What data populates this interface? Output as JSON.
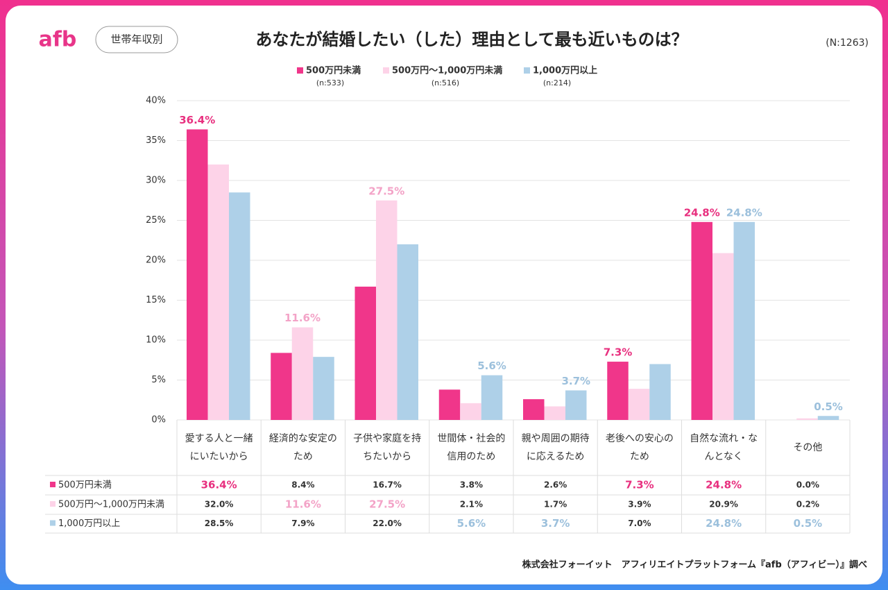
{
  "brand": "afb",
  "badge": "世帯年収別",
  "sample_total": "(N:1263)",
  "source": "株式会社フォーイット　アフィリエイトプラットフォーム『afb（アフィビー）』調べ",
  "chart_data": {
    "type": "bar",
    "title": "あなたが結婚したい（した）理由として最も近いものは？",
    "categories": [
      "愛する人と一緒にいたいから",
      "経済的な安定のため",
      "子供や家庭を持ちたいから",
      "世間体・社会的信用のため",
      "親や周囲の期待に応えるため",
      "老後への安心のため",
      "自然な流れ・なんとなく",
      "その他"
    ],
    "series": [
      {
        "name": "500万円未満",
        "sample": "(n:533)",
        "color": "#f0368a",
        "label_color": "#e8307f",
        "values": [
          36.4,
          8.4,
          16.7,
          3.8,
          2.6,
          7.3,
          24.8,
          0.0
        ],
        "value_labels": [
          "36.4%",
          "8.4%",
          "16.7%",
          "3.8%",
          "2.6%",
          "7.3%",
          "24.8%",
          "0.0%"
        ],
        "highlight": [
          0,
          5,
          6
        ]
      },
      {
        "name": "500万円〜1,000万円未満",
        "sample": "(n:516)",
        "color": "#fdd3e8",
        "label_color": "#f3a3c7",
        "values": [
          32.0,
          11.6,
          27.5,
          2.1,
          1.7,
          3.9,
          20.9,
          0.2
        ],
        "value_labels": [
          "32.0%",
          "11.6%",
          "27.5%",
          "2.1%",
          "1.7%",
          "3.9%",
          "20.9%",
          "0.2%"
        ],
        "highlight": [
          1,
          2
        ]
      },
      {
        "name": "1,000万円以上",
        "sample": "(n:214)",
        "color": "#aed0e8",
        "label_color": "#9cc0dc",
        "values": [
          28.5,
          7.9,
          22.0,
          5.6,
          3.7,
          7.0,
          24.8,
          0.5
        ],
        "value_labels": [
          "28.5%",
          "7.9%",
          "22.0%",
          "5.6%",
          "3.7%",
          "7.0%",
          "24.8%",
          "0.5%"
        ],
        "highlight": [
          3,
          4,
          6,
          7
        ]
      }
    ],
    "ylim": [
      0,
      40
    ],
    "yticks": [
      {
        "value": 0,
        "label": "0%"
      },
      {
        "value": 5,
        "label": "5%"
      },
      {
        "value": 10,
        "label": "10%"
      },
      {
        "value": 15,
        "label": "15%"
      },
      {
        "value": 20,
        "label": "20%"
      },
      {
        "value": 25,
        "label": "25%"
      },
      {
        "value": 30,
        "label": "30%"
      },
      {
        "value": 35,
        "label": "35%"
      },
      {
        "value": 40,
        "label": "40%"
      }
    ],
    "grid": true
  }
}
